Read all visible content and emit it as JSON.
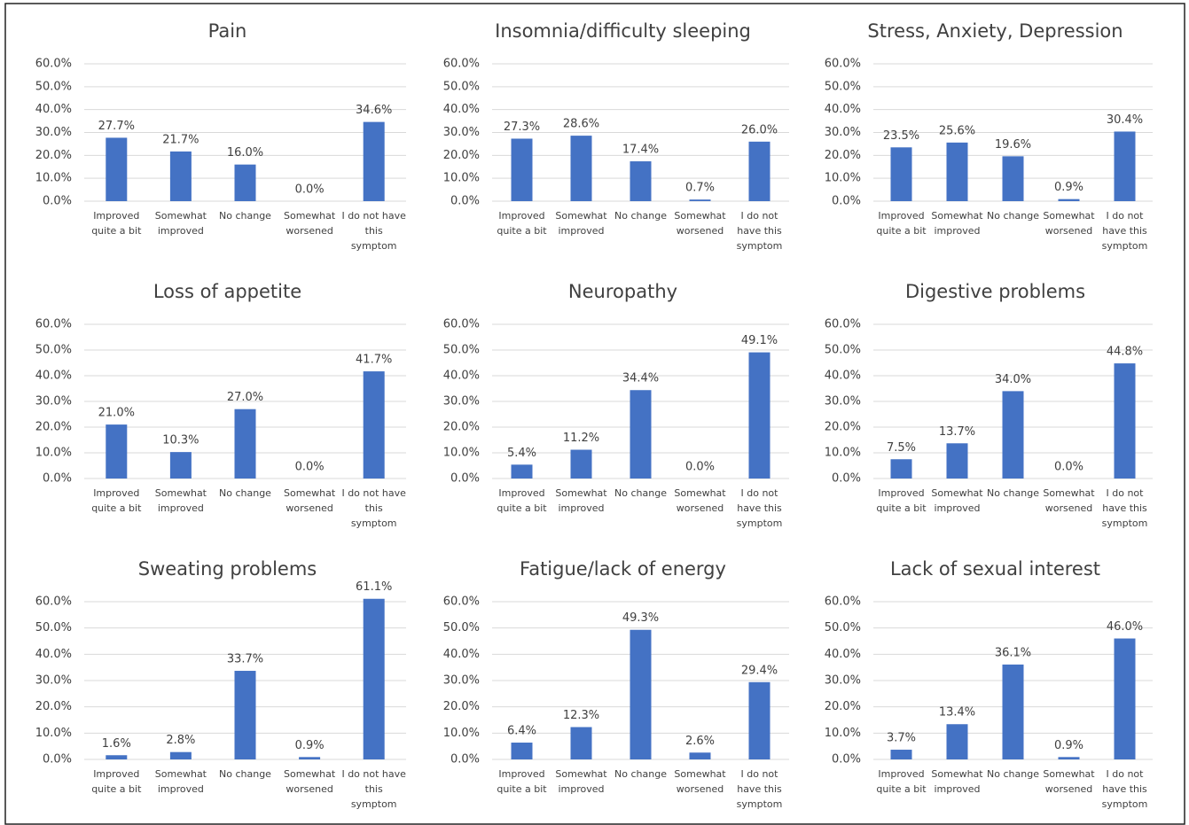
{
  "chart_data": [
    {
      "type": "bar",
      "title": "Pain",
      "categories": [
        "Improved quite a bit",
        "Somewhat improved",
        "No change",
        "Somewhat worsened",
        "I do not have this symptom"
      ],
      "values": [
        27.7,
        21.7,
        16.0,
        0.0,
        34.6
      ],
      "value_labels": [
        "27.7%",
        "21.7%",
        "16.0%",
        "0.0%",
        "34.6%"
      ],
      "color": "#4472c4",
      "ylim": [
        0,
        60
      ],
      "yticks": [
        {
          "value": 0,
          "label": "0.0%"
        },
        {
          "value": 10,
          "label": "10.0%"
        },
        {
          "value": 20,
          "label": "20.0%"
        },
        {
          "value": 30,
          "label": "30.0%"
        },
        {
          "value": 40,
          "label": "40.0%"
        },
        {
          "value": 50,
          "label": "50.0%"
        },
        {
          "value": 60,
          "label": "60.0%"
        }
      ],
      "grid": true
    },
    {
      "type": "bar",
      "title": "Insomnia/difficulty sleeping",
      "categories": [
        "Improved quite a bit",
        "Somewhat improved",
        "No change",
        "Somewhat worsened",
        "I do not have this symptom"
      ],
      "values": [
        27.3,
        28.6,
        17.4,
        0.7,
        26.0
      ],
      "value_labels": [
        "27.3%",
        "28.6%",
        "17.4%",
        "0.7%",
        "26.0%"
      ],
      "color": "#4472c4",
      "ylim": [
        0,
        60
      ],
      "yticks": [
        {
          "value": 0,
          "label": "0.0%"
        },
        {
          "value": 10,
          "label": "10.0%"
        },
        {
          "value": 20,
          "label": "20.0%"
        },
        {
          "value": 30,
          "label": "30.0%"
        },
        {
          "value": 40,
          "label": "40.0%"
        },
        {
          "value": 50,
          "label": "50.0%"
        },
        {
          "value": 60,
          "label": "60.0%"
        }
      ],
      "grid": true
    },
    {
      "type": "bar",
      "title": "Stress, Anxiety, Depression",
      "categories": [
        "Improved quite a bit",
        "Somewhat improved",
        "No change",
        "Somewhat worsened",
        "I do not have this symptom"
      ],
      "values": [
        23.5,
        25.6,
        19.6,
        0.9,
        30.4
      ],
      "value_labels": [
        "23.5%",
        "25.6%",
        "19.6%",
        "0.9%",
        "30.4%"
      ],
      "color": "#4472c4",
      "ylim": [
        0,
        60
      ],
      "yticks": [
        {
          "value": 0,
          "label": "0.0%"
        },
        {
          "value": 10,
          "label": "10.0%"
        },
        {
          "value": 20,
          "label": "20.0%"
        },
        {
          "value": 30,
          "label": "30.0%"
        },
        {
          "value": 40,
          "label": "40.0%"
        },
        {
          "value": 50,
          "label": "50.0%"
        },
        {
          "value": 60,
          "label": "60.0%"
        }
      ],
      "grid": true
    },
    {
      "type": "bar",
      "title": "Loss of appetite",
      "categories": [
        "Improved quite a bit",
        "Somewhat improved",
        "No change",
        "Somewhat worsened",
        "I do not have this symptom"
      ],
      "values": [
        21.0,
        10.3,
        27.0,
        0.0,
        41.7
      ],
      "value_labels": [
        "21.0%",
        "10.3%",
        "27.0%",
        "0.0%",
        "41.7%"
      ],
      "color": "#4472c4",
      "ylim": [
        0,
        60
      ],
      "yticks": [
        {
          "value": 0,
          "label": "0.0%"
        },
        {
          "value": 10,
          "label": "10.0%"
        },
        {
          "value": 20,
          "label": "20.0%"
        },
        {
          "value": 30,
          "label": "30.0%"
        },
        {
          "value": 40,
          "label": "40.0%"
        },
        {
          "value": 50,
          "label": "50.0%"
        },
        {
          "value": 60,
          "label": "60.0%"
        }
      ],
      "grid": true
    },
    {
      "type": "bar",
      "title": "Neuropathy",
      "categories": [
        "Improved quite a bit",
        "Somewhat improved",
        "No change",
        "Somewhat worsened",
        "I do not have this symptom"
      ],
      "values": [
        5.4,
        11.2,
        34.4,
        0.0,
        49.1
      ],
      "value_labels": [
        "5.4%",
        "11.2%",
        "34.4%",
        "0.0%",
        "49.1%"
      ],
      "color": "#4472c4",
      "ylim": [
        0,
        60
      ],
      "yticks": [
        {
          "value": 0,
          "label": "0.0%"
        },
        {
          "value": 10,
          "label": "10.0%"
        },
        {
          "value": 20,
          "label": "20.0%"
        },
        {
          "value": 30,
          "label": "30.0%"
        },
        {
          "value": 40,
          "label": "40.0%"
        },
        {
          "value": 50,
          "label": "50.0%"
        },
        {
          "value": 60,
          "label": "60.0%"
        }
      ],
      "grid": true
    },
    {
      "type": "bar",
      "title": "Digestive problems",
      "categories": [
        "Improved quite a bit",
        "Somewhat improved",
        "No change",
        "Somewhat worsened",
        "I do not have this symptom"
      ],
      "values": [
        7.5,
        13.7,
        34.0,
        0.0,
        44.8
      ],
      "value_labels": [
        "7.5%",
        "13.7%",
        "34.0%",
        "0.0%",
        "44.8%"
      ],
      "color": "#4472c4",
      "ylim": [
        0,
        60
      ],
      "yticks": [
        {
          "value": 0,
          "label": "0.0%"
        },
        {
          "value": 10,
          "label": "10.0%"
        },
        {
          "value": 20,
          "label": "20.0%"
        },
        {
          "value": 30,
          "label": "30.0%"
        },
        {
          "value": 40,
          "label": "40.0%"
        },
        {
          "value": 50,
          "label": "50.0%"
        },
        {
          "value": 60,
          "label": "60.0%"
        }
      ],
      "grid": true
    },
    {
      "type": "bar",
      "title": "Sweating problems",
      "categories": [
        "Improved quite a bit",
        "Somewhat improved",
        "No change",
        "Somewhat worsened",
        "I do not have this symptom"
      ],
      "values": [
        1.6,
        2.8,
        33.7,
        0.9,
        61.1
      ],
      "value_labels": [
        "1.6%",
        "2.8%",
        "33.7%",
        "0.9%",
        "61.1%"
      ],
      "color": "#4472c4",
      "ylim": [
        0,
        60
      ],
      "yticks": [
        {
          "value": 0,
          "label": "0.0%"
        },
        {
          "value": 10,
          "label": "10.0%"
        },
        {
          "value": 20,
          "label": "20.0%"
        },
        {
          "value": 30,
          "label": "30.0%"
        },
        {
          "value": 40,
          "label": "40.0%"
        },
        {
          "value": 50,
          "label": "50.0%"
        },
        {
          "value": 60,
          "label": "60.0%"
        }
      ],
      "grid": true
    },
    {
      "type": "bar",
      "title": "Fatigue/lack of energy",
      "categories": [
        "Improved quite a bit",
        "Somewhat improved",
        "No change",
        "Somewhat worsened",
        "I do not have this symptom"
      ],
      "values": [
        6.4,
        12.3,
        49.3,
        2.6,
        29.4
      ],
      "value_labels": [
        "6.4%",
        "12.3%",
        "49.3%",
        "2.6%",
        "29.4%"
      ],
      "color": "#4472c4",
      "ylim": [
        0,
        60
      ],
      "yticks": [
        {
          "value": 0,
          "label": "0.0%"
        },
        {
          "value": 10,
          "label": "10.0%"
        },
        {
          "value": 20,
          "label": "20.0%"
        },
        {
          "value": 30,
          "label": "30.0%"
        },
        {
          "value": 40,
          "label": "40.0%"
        },
        {
          "value": 50,
          "label": "50.0%"
        },
        {
          "value": 60,
          "label": "60.0%"
        }
      ],
      "grid": true
    },
    {
      "type": "bar",
      "title": "Lack of sexual interest",
      "categories": [
        "Improved quite a bit",
        "Somewhat improved",
        "No change",
        "Somewhat worsened",
        "I do not have this symptom"
      ],
      "values": [
        3.7,
        13.4,
        36.1,
        0.9,
        46.0
      ],
      "value_labels": [
        "3.7%",
        "13.4%",
        "36.1%",
        "0.9%",
        "46.0%"
      ],
      "color": "#4472c4",
      "ylim": [
        0,
        60
      ],
      "yticks": [
        {
          "value": 0,
          "label": "0.0%"
        },
        {
          "value": 10,
          "label": "10.0%"
        },
        {
          "value": 20,
          "label": "20.0%"
        },
        {
          "value": 30,
          "label": "30.0%"
        },
        {
          "value": 40,
          "label": "40.0%"
        },
        {
          "value": 50,
          "label": "50.0%"
        },
        {
          "value": 60,
          "label": "60.0%"
        }
      ],
      "grid": true
    }
  ]
}
